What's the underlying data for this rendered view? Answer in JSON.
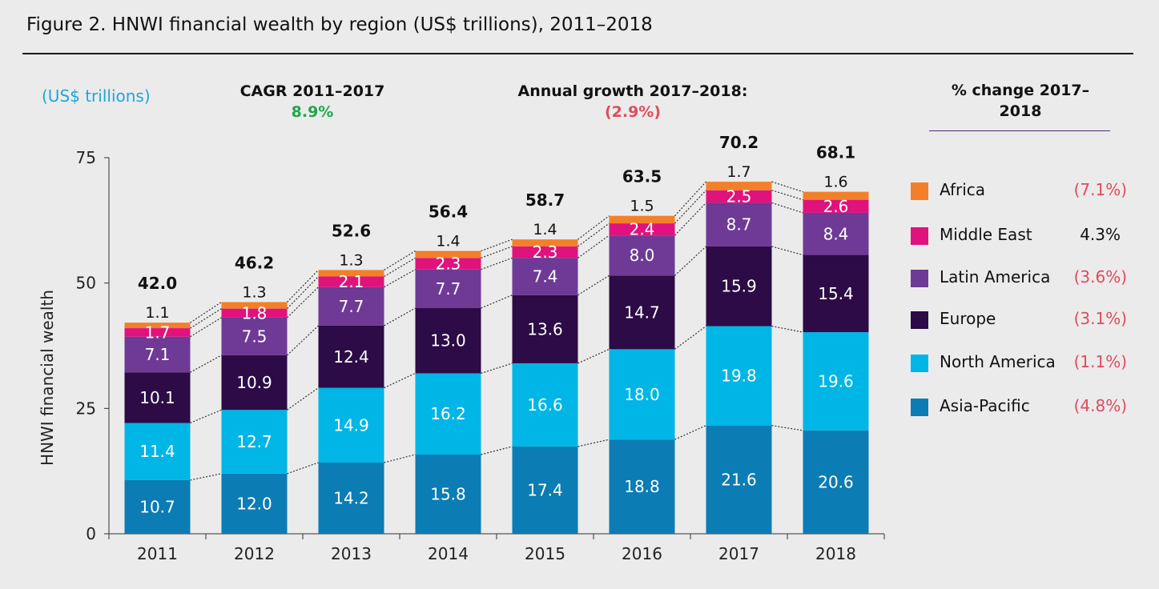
{
  "figure": {
    "title": "Figure 2. HNWI financial wealth by region (US$ trillions), 2011–2018",
    "units_label": "(US$ trillions)",
    "cagr_label": "CAGR 2011–2017",
    "cagr_value": "8.9%",
    "growth_label": "Annual growth 2017–2018:",
    "growth_value": "(2.9%)",
    "pct_change_header": "% change 2017–2018"
  },
  "colors": {
    "asia_pacific": "#0b7cb4",
    "north_america": "#00b6e6",
    "europe": "#2c0b46",
    "latin_america": "#6e3a96",
    "middle_east": "#e0127d",
    "africa": "#f2802a",
    "negative": "#e04a5f",
    "positive": "#1fa64a"
  },
  "legend": [
    {
      "label": "Africa",
      "pct": "(7.1%)",
      "color": "#f2802a",
      "negative": true
    },
    {
      "label": "Middle East",
      "pct": "4.3%",
      "color": "#e0127d",
      "negative": false
    },
    {
      "label": "Latin America",
      "pct": "(3.6%)",
      "color": "#6e3a96",
      "negative": true
    },
    {
      "label": "Europe",
      "pct": "(3.1%)",
      "color": "#2c0b46",
      "negative": true
    },
    {
      "label": "North America",
      "pct": "(1.1%)",
      "color": "#00b6e6",
      "negative": true
    },
    {
      "label": "Asia-Pacific",
      "pct": "(4.8%)",
      "color": "#0b7cb4",
      "negative": true
    }
  ],
  "chart_data": {
    "type": "bar",
    "stacked": true,
    "ylabel": "HNWI financial wealth",
    "ylim": [
      0,
      75
    ],
    "yticks": [
      0,
      25,
      50,
      75
    ],
    "categories": [
      "2011",
      "2012",
      "2013",
      "2014",
      "2015",
      "2016",
      "2017",
      "2018"
    ],
    "totals": [
      "42.0",
      "46.2",
      "52.6",
      "56.4",
      "58.7",
      "63.5",
      "70.2",
      "68.1"
    ],
    "series": [
      {
        "name": "Asia-Pacific",
        "color": "#0b7cb4",
        "values": [
          10.7,
          12.0,
          14.2,
          15.8,
          17.4,
          18.8,
          21.6,
          20.6
        ]
      },
      {
        "name": "North America",
        "color": "#00b6e6",
        "values": [
          11.4,
          12.7,
          14.9,
          16.2,
          16.6,
          18.0,
          19.8,
          19.6
        ]
      },
      {
        "name": "Europe",
        "color": "#2c0b46",
        "values": [
          10.1,
          10.9,
          12.4,
          13.0,
          13.6,
          14.7,
          15.9,
          15.4
        ]
      },
      {
        "name": "Latin America",
        "color": "#6e3a96",
        "values": [
          7.1,
          7.5,
          7.7,
          7.7,
          7.4,
          8.0,
          8.7,
          8.4
        ]
      },
      {
        "name": "Middle East",
        "color": "#e0127d",
        "values": [
          1.7,
          1.8,
          2.1,
          2.3,
          2.3,
          2.4,
          2.5,
          2.6
        ]
      },
      {
        "name": "Africa",
        "color": "#f2802a",
        "values": [
          1.1,
          1.3,
          1.3,
          1.4,
          1.4,
          1.5,
          1.7,
          1.6
        ]
      }
    ]
  }
}
